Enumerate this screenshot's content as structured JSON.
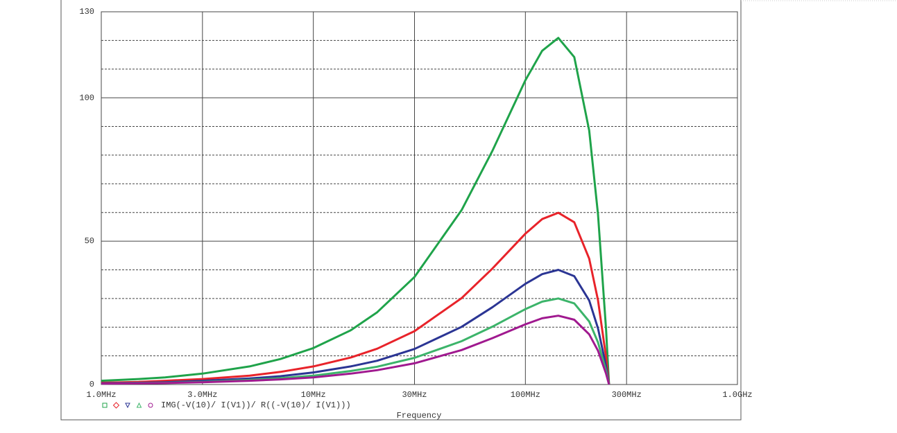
{
  "chart_data": {
    "type": "line",
    "x": [
      1000000,
      1500000,
      2000000,
      3000000,
      5000000,
      7000000,
      10000000,
      15000000,
      20000000,
      30000000,
      50000000,
      70000000,
      100000000,
      120000000,
      143000000,
      170000000,
      200000000,
      220000000,
      240000000,
      248000000
    ],
    "series": [
      {
        "color": "#1fa34a",
        "values": [
          1.3,
          1.9,
          2.5,
          3.8,
          6.3,
          8.9,
          12.7,
          18.9,
          25.2,
          37.5,
          60.8,
          81.6,
          106.1,
          116.4,
          120.9,
          114.2,
          88.6,
          59.4,
          19.3,
          0
        ]
      },
      {
        "color": "#e8232a",
        "values": [
          0.6,
          0.9,
          1.3,
          1.9,
          3.1,
          4.4,
          6.3,
          9.4,
          12.5,
          18.6,
          30.1,
          40.5,
          52.6,
          57.7,
          59.9,
          56.6,
          43.9,
          29.4,
          9.6,
          0
        ]
      },
      {
        "color": "#2b3594",
        "values": [
          0.4,
          0.6,
          0.8,
          1.3,
          2.1,
          2.9,
          4.2,
          6.3,
          8.3,
          12.4,
          20.1,
          27.0,
          35.1,
          38.5,
          40.0,
          37.8,
          29.3,
          19.6,
          6.4,
          0
        ]
      },
      {
        "color": "#3cb46a",
        "values": [
          0.3,
          0.5,
          0.6,
          0.9,
          1.6,
          2.2,
          3.1,
          4.7,
          6.2,
          9.3,
          15.1,
          20.2,
          26.3,
          28.9,
          30.0,
          28.3,
          22.0,
          14.7,
          4.8,
          0
        ]
      },
      {
        "color": "#a0198f",
        "values": [
          0.3,
          0.4,
          0.5,
          0.8,
          1.3,
          1.8,
          2.5,
          3.8,
          5.0,
          7.4,
          12.0,
          16.2,
          21.0,
          23.1,
          24.0,
          22.6,
          17.5,
          11.8,
          3.8,
          0
        ]
      }
    ],
    "xscale": "log",
    "xlim": [
      1000000,
      1000000000
    ],
    "xticks": [
      {
        "value": 1000000,
        "label": "1.0MHz"
      },
      {
        "value": 3000000,
        "label": "3.0MHz"
      },
      {
        "value": 10000000,
        "label": "10MHz"
      },
      {
        "value": 30000000,
        "label": "30MHz"
      },
      {
        "value": 100000000,
        "label": "100MHz"
      },
      {
        "value": 300000000,
        "label": "300MHz"
      },
      {
        "value": 1000000000,
        "label": "1.0GHz"
      }
    ],
    "ylim": [
      0,
      130
    ],
    "yticks": [
      0,
      50,
      100,
      130
    ],
    "ygrid_dashed": [
      10,
      20,
      30,
      40,
      60,
      70,
      80,
      90,
      110,
      120
    ],
    "legend_label": "IMG(-V(10)/ I(V1))/ R((-V(10)/ I(V1)))",
    "xlabel": "Frequency"
  }
}
